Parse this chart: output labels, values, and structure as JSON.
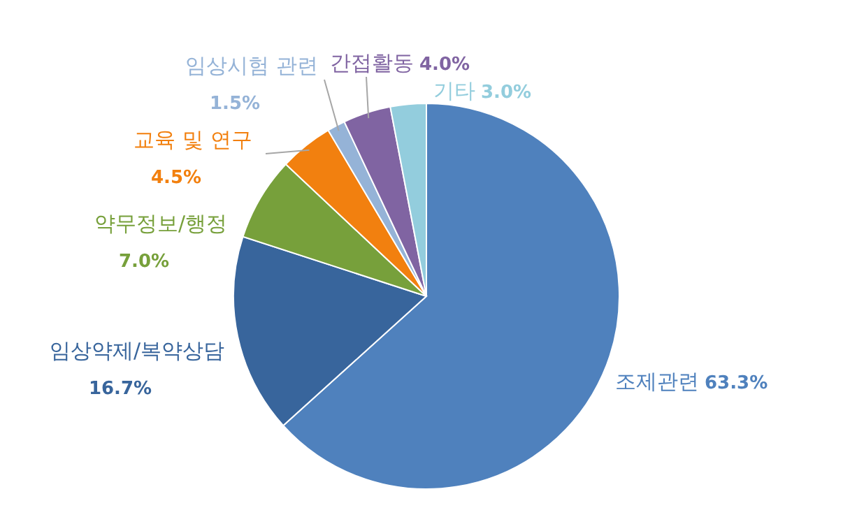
{
  "chart_data": {
    "type": "pie",
    "categories": [
      "조제관련",
      "임상약제/복약상담",
      "약무정보/행정",
      "교육 및 연구",
      "임상시험 관련",
      "간접활동",
      "기타"
    ],
    "values": [
      63.3,
      16.7,
      7.0,
      4.5,
      1.5,
      4.0,
      3.0
    ],
    "colors": [
      "#4f81bd",
      "#38659c",
      "#77a03b",
      "#f2800f",
      "#95b3d7",
      "#8064a2",
      "#93cddd"
    ],
    "value_labels": [
      "63.3%",
      "16.7%",
      "7.0%",
      "4.5%",
      "1.5%",
      "4.0%",
      "3.0%"
    ]
  }
}
